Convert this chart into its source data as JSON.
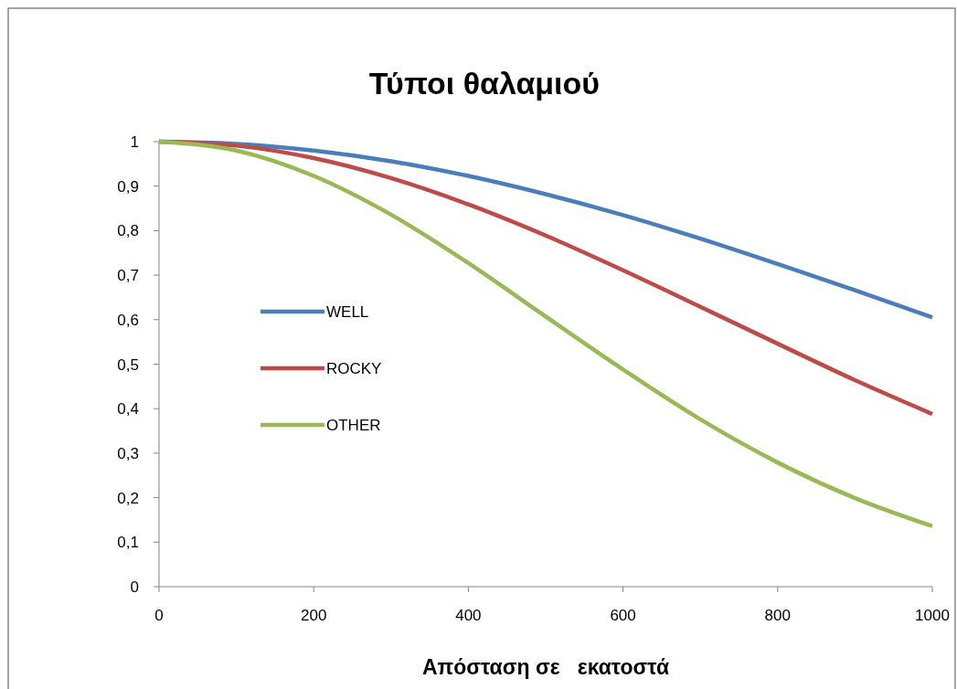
{
  "chart_data": {
    "type": "line",
    "title": "Τύποι θαλαμιού",
    "xlabel": "Απόσταση σε   εκατοστά",
    "x": [
      0,
      100,
      200,
      300,
      400,
      500,
      600,
      700,
      800,
      900,
      1000
    ],
    "series": [
      {
        "name": "WELL",
        "color": "#4a7ebb",
        "values": [
          1,
          0.995,
          0.98,
          0.956,
          0.923,
          0.882,
          0.835,
          0.782,
          0.725,
          0.666,
          0.605
        ]
      },
      {
        "name": "ROCKY",
        "color": "#be4b48",
        "values": [
          1,
          0.991,
          0.963,
          0.918,
          0.859,
          0.789,
          0.711,
          0.629,
          0.546,
          0.464,
          0.388
        ]
      },
      {
        "name": "OTHER",
        "color": "#98b954",
        "values": [
          1,
          0.98,
          0.923,
          0.836,
          0.727,
          0.607,
          0.488,
          0.376,
          0.279,
          0.199,
          0.136
        ]
      }
    ],
    "xlim": [
      0,
      1000
    ],
    "xticks": [
      0,
      200,
      400,
      600,
      800,
      1000
    ],
    "ylim": [
      0,
      1
    ],
    "yticks": [
      0,
      {
        "value": 0.1,
        "label": "0,1"
      },
      {
        "value": 0.2,
        "label": "0,2"
      },
      {
        "value": 0.3,
        "label": "0,3"
      },
      {
        "value": 0.4,
        "label": "0,4"
      },
      {
        "value": 0.5,
        "label": "0,5"
      },
      {
        "value": 0.6,
        "label": "0,6"
      },
      {
        "value": 0.7,
        "label": "0,7"
      },
      {
        "value": 0.8,
        "label": "0,8"
      },
      {
        "value": 0.9,
        "label": "0,9"
      },
      1
    ],
    "legend": "left",
    "line_style": "solid"
  }
}
